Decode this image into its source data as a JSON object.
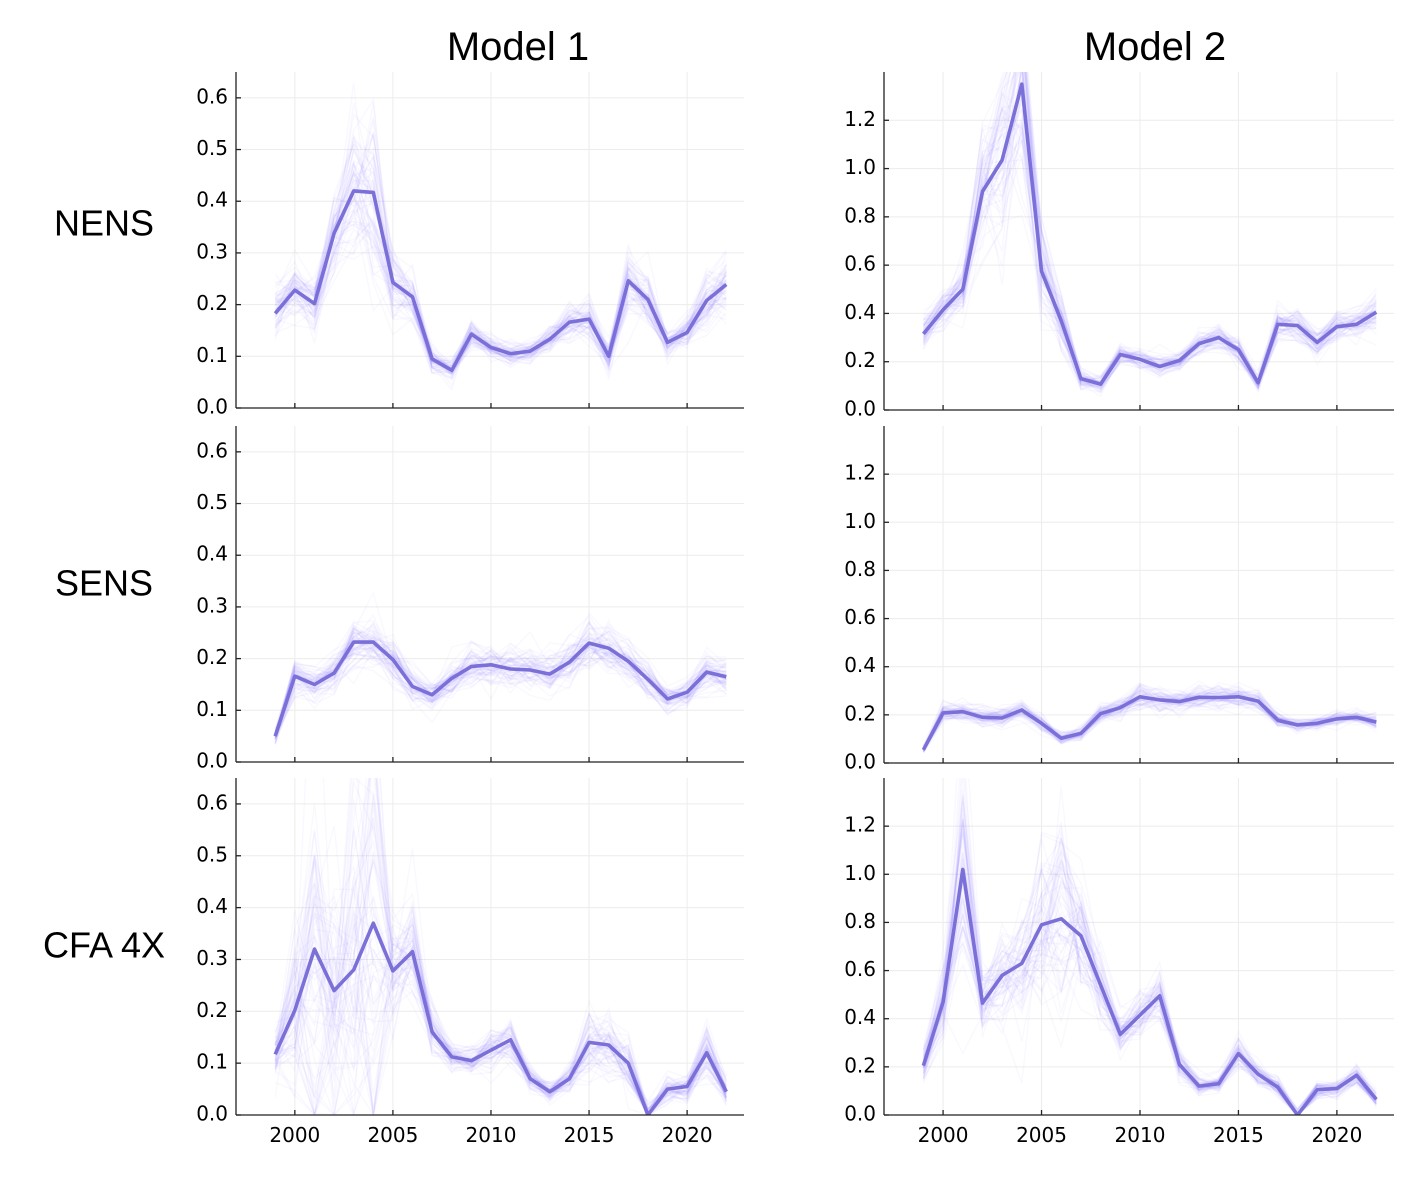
{
  "figure": {
    "column_titles": [
      "Model 1",
      "Model 2"
    ],
    "row_labels": [
      "NENS",
      "SENS",
      "CFA 4X"
    ]
  },
  "colors": {
    "median_line": "#7b6fd8",
    "ensemble_lines": "#8c7dff",
    "grid": "#ececec",
    "axis": "#222222"
  },
  "chart_data": [
    {
      "type": "line",
      "model": "Model 1",
      "row": "NENS",
      "x": [
        1999,
        2000,
        2001,
        2002,
        2003,
        2004,
        2005,
        2006,
        2007,
        2008,
        2009,
        2010,
        2011,
        2012,
        2013,
        2014,
        2015,
        2016,
        2017,
        2018,
        2019,
        2020,
        2021,
        2022
      ],
      "series": [
        {
          "values": [
            0.183,
            0.228,
            0.202,
            0.338,
            0.42,
            0.417,
            0.243,
            0.215,
            0.095,
            0.073,
            0.143,
            0.117,
            0.105,
            0.11,
            0.133,
            0.166,
            0.172,
            0.1,
            0.246,
            0.21,
            0.127,
            0.146,
            0.208,
            0.239
          ]
        }
      ],
      "band_spread": [
        0.04,
        0.04,
        0.04,
        0.06,
        0.11,
        0.13,
        0.05,
        0.04,
        0.02,
        0.015,
        0.02,
        0.015,
        0.015,
        0.015,
        0.02,
        0.025,
        0.03,
        0.02,
        0.05,
        0.04,
        0.02,
        0.02,
        0.04,
        0.05
      ],
      "xlim": [
        1997,
        2022.9
      ],
      "ylim": [
        0,
        0.65
      ],
      "xticks": [
        2000,
        2005,
        2010,
        2015,
        2020
      ],
      "xtick_labels": [],
      "yticks": [
        0.0,
        0.1,
        0.2,
        0.3,
        0.4,
        0.5,
        0.6
      ],
      "ytick_labels": [
        "0.0",
        "0.1",
        "0.2",
        "0.3",
        "0.4",
        "0.5",
        "0.6"
      ],
      "grid": true
    },
    {
      "type": "line",
      "model": "Model 2",
      "row": "NENS",
      "x": [
        1999,
        2000,
        2001,
        2002,
        2003,
        2004,
        2005,
        2006,
        2007,
        2008,
        2009,
        2010,
        2011,
        2012,
        2013,
        2014,
        2015,
        2016,
        2017,
        2018,
        2019,
        2020,
        2021,
        2022
      ],
      "series": [
        {
          "values": [
            0.315,
            0.415,
            0.5,
            0.905,
            1.035,
            1.35,
            0.575,
            0.37,
            0.13,
            0.107,
            0.23,
            0.21,
            0.18,
            0.205,
            0.275,
            0.3,
            0.25,
            0.113,
            0.355,
            0.35,
            0.28,
            0.345,
            0.355,
            0.405
          ]
        }
      ],
      "band_spread": [
        0.05,
        0.06,
        0.08,
        0.2,
        0.3,
        0.35,
        0.15,
        0.08,
        0.03,
        0.025,
        0.03,
        0.03,
        0.03,
        0.03,
        0.035,
        0.04,
        0.035,
        0.025,
        0.05,
        0.05,
        0.04,
        0.045,
        0.045,
        0.06
      ],
      "xlim": [
        1997,
        2022.9
      ],
      "ylim": [
        0,
        1.4
      ],
      "xticks": [
        2000,
        2005,
        2010,
        2015,
        2020
      ],
      "xtick_labels": [],
      "yticks": [
        0.0,
        0.2,
        0.4,
        0.6,
        0.8,
        1.0,
        1.2
      ],
      "ytick_labels": [
        "0.0",
        "0.2",
        "0.4",
        "0.6",
        "0.8",
        "1.0",
        "1.2"
      ],
      "grid": true
    },
    {
      "type": "line",
      "model": "Model 1",
      "row": "SENS",
      "x": [
        1999,
        2000,
        2001,
        2002,
        2003,
        2004,
        2005,
        2006,
        2007,
        2008,
        2009,
        2010,
        2011,
        2012,
        2013,
        2014,
        2015,
        2016,
        2017,
        2018,
        2019,
        2020,
        2021,
        2022
      ],
      "series": [
        {
          "values": [
            0.05,
            0.166,
            0.15,
            0.172,
            0.232,
            0.232,
            0.198,
            0.146,
            0.13,
            0.162,
            0.185,
            0.188,
            0.18,
            0.178,
            0.17,
            0.193,
            0.23,
            0.22,
            0.195,
            0.16,
            0.122,
            0.135,
            0.174,
            0.165
          ]
        }
      ],
      "band_spread": [
        0.01,
        0.025,
        0.025,
        0.025,
        0.035,
        0.035,
        0.03,
        0.025,
        0.02,
        0.025,
        0.03,
        0.03,
        0.03,
        0.03,
        0.03,
        0.03,
        0.035,
        0.035,
        0.03,
        0.025,
        0.02,
        0.02,
        0.025,
        0.025
      ],
      "xlim": [
        1997,
        2022.9
      ],
      "ylim": [
        0,
        0.65
      ],
      "xticks": [
        2000,
        2005,
        2010,
        2015,
        2020
      ],
      "xtick_labels": [],
      "yticks": [
        0.0,
        0.1,
        0.2,
        0.3,
        0.4,
        0.5,
        0.6
      ],
      "ytick_labels": [
        "0.0",
        "0.1",
        "0.2",
        "0.3",
        "0.4",
        "0.5",
        "0.6"
      ],
      "grid": true
    },
    {
      "type": "line",
      "model": "Model 2",
      "row": "SENS",
      "x": [
        1999,
        2000,
        2001,
        2002,
        2003,
        2004,
        2005,
        2006,
        2007,
        2008,
        2009,
        2010,
        2011,
        2012,
        2013,
        2014,
        2015,
        2016,
        2017,
        2018,
        2019,
        2020,
        2021,
        2022
      ],
      "series": [
        {
          "values": [
            0.055,
            0.208,
            0.213,
            0.19,
            0.187,
            0.22,
            0.165,
            0.103,
            0.123,
            0.205,
            0.23,
            0.275,
            0.262,
            0.255,
            0.273,
            0.272,
            0.275,
            0.257,
            0.178,
            0.158,
            0.165,
            0.183,
            0.19,
            0.17
          ]
        }
      ],
      "band_spread": [
        0.01,
        0.03,
        0.03,
        0.03,
        0.03,
        0.03,
        0.025,
        0.02,
        0.02,
        0.03,
        0.035,
        0.04,
        0.035,
        0.035,
        0.035,
        0.035,
        0.035,
        0.035,
        0.025,
        0.02,
        0.02,
        0.025,
        0.025,
        0.025
      ],
      "xlim": [
        1997,
        2022.9
      ],
      "ylim": [
        0,
        1.4
      ],
      "xticks": [
        2000,
        2005,
        2010,
        2015,
        2020
      ],
      "xtick_labels": [],
      "yticks": [
        0.0,
        0.2,
        0.4,
        0.6,
        0.8,
        1.0,
        1.2
      ],
      "ytick_labels": [
        "0.0",
        "0.2",
        "0.4",
        "0.6",
        "0.8",
        "1.0",
        "1.2"
      ],
      "grid": true
    },
    {
      "type": "line",
      "model": "Model 1",
      "row": "CFA 4X",
      "x": [
        1999,
        2000,
        2001,
        2002,
        2003,
        2004,
        2005,
        2006,
        2007,
        2008,
        2009,
        2010,
        2011,
        2012,
        2013,
        2014,
        2015,
        2016,
        2017,
        2018,
        2019,
        2020,
        2021,
        2022
      ],
      "series": [
        {
          "values": [
            0.117,
            0.202,
            0.32,
            0.24,
            0.28,
            0.37,
            0.278,
            0.315,
            0.16,
            0.112,
            0.105,
            0.125,
            0.145,
            0.07,
            0.045,
            0.07,
            0.14,
            0.135,
            0.1,
            0.0,
            0.05,
            0.055,
            0.12,
            0.045
          ]
        }
      ],
      "band_spread": [
        0.04,
        0.12,
        0.3,
        0.2,
        0.25,
        0.35,
        0.08,
        0.08,
        0.04,
        0.02,
        0.02,
        0.03,
        0.03,
        0.02,
        0.015,
        0.02,
        0.05,
        0.05,
        0.04,
        0.02,
        0.02,
        0.02,
        0.04,
        0.02
      ],
      "xlim": [
        1997,
        2022.9
      ],
      "ylim": [
        0,
        0.65
      ],
      "xticks": [
        2000,
        2005,
        2010,
        2015,
        2020
      ],
      "xtick_labels": [
        "2000",
        "2005",
        "2010",
        "2015",
        "2020"
      ],
      "yticks": [
        0.0,
        0.1,
        0.2,
        0.3,
        0.4,
        0.5,
        0.6
      ],
      "ytick_labels": [
        "0.0",
        "0.1",
        "0.2",
        "0.3",
        "0.4",
        "0.5",
        "0.6"
      ],
      "grid": true
    },
    {
      "type": "line",
      "model": "Model 2",
      "row": "CFA 4X",
      "x": [
        1999,
        2000,
        2001,
        2002,
        2003,
        2004,
        2005,
        2006,
        2007,
        2008,
        2009,
        2010,
        2011,
        2012,
        2013,
        2014,
        2015,
        2016,
        2017,
        2018,
        2019,
        2020,
        2021,
        2022
      ],
      "series": [
        {
          "values": [
            0.205,
            0.47,
            1.02,
            0.465,
            0.58,
            0.63,
            0.79,
            0.815,
            0.745,
            0.54,
            0.335,
            0.415,
            0.495,
            0.21,
            0.12,
            0.13,
            0.255,
            0.17,
            0.115,
            0.0,
            0.105,
            0.11,
            0.165,
            0.065
          ]
        }
      ],
      "band_spread": [
        0.05,
        0.1,
        0.35,
        0.1,
        0.15,
        0.2,
        0.3,
        0.3,
        0.2,
        0.12,
        0.06,
        0.08,
        0.08,
        0.05,
        0.03,
        0.03,
        0.05,
        0.04,
        0.03,
        0.02,
        0.025,
        0.025,
        0.03,
        0.02
      ],
      "xlim": [
        1997,
        2022.9
      ],
      "ylim": [
        0,
        1.4
      ],
      "xticks": [
        2000,
        2005,
        2010,
        2015,
        2020
      ],
      "xtick_labels": [
        "2000",
        "2005",
        "2010",
        "2015",
        "2020"
      ],
      "yticks": [
        0.0,
        0.2,
        0.4,
        0.6,
        0.8,
        1.0,
        1.2
      ],
      "ytick_labels": [
        "0.0",
        "0.2",
        "0.4",
        "0.6",
        "0.8",
        "1.0",
        "1.2"
      ],
      "grid": true
    }
  ]
}
